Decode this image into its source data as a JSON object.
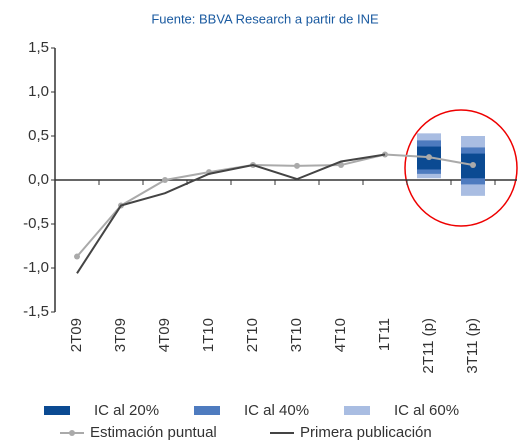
{
  "chart_data": {
    "type": "line",
    "subtitle": "Fuente: BBVA Research a partir de INE",
    "categories": [
      "2T09",
      "3T09",
      "4T09",
      "1T10",
      "2T10",
      "3T10",
      "4T10",
      "1T11",
      "2T11 (p)",
      "3T11 (p)"
    ],
    "ylim": [
      -1.5,
      1.5
    ],
    "yticks": [
      {
        "value": -1.5,
        "label": "-1,5"
      },
      {
        "value": -1.0,
        "label": "-1,0"
      },
      {
        "value": -0.5,
        "label": "-0,5"
      },
      {
        "value": 0,
        "label": "0,0"
      },
      {
        "value": 0.5,
        "label": "0,5"
      },
      {
        "value": 1.0,
        "label": "1,0"
      },
      {
        "value": 1.5,
        "label": "1,5"
      }
    ],
    "bands": [
      {
        "name": "IC al 60%",
        "color": "#a9bde2",
        "low": [
          null,
          null,
          null,
          null,
          null,
          null,
          null,
          null,
          0.02,
          -0.18
        ],
        "high": [
          null,
          null,
          null,
          null,
          null,
          null,
          null,
          null,
          0.53,
          0.5
        ]
      },
      {
        "name": "IC al 40%",
        "color": "#4e7bbf",
        "low": [
          null,
          null,
          null,
          null,
          null,
          null,
          null,
          null,
          0.07,
          -0.05
        ],
        "high": [
          null,
          null,
          null,
          null,
          null,
          null,
          null,
          null,
          0.45,
          0.37
        ]
      },
      {
        "name": "IC al 20%",
        "color": "#0b4a92",
        "low": [
          null,
          null,
          null,
          null,
          null,
          null,
          null,
          null,
          0.12,
          0.02
        ],
        "high": [
          null,
          null,
          null,
          null,
          null,
          null,
          null,
          null,
          0.38,
          0.3
        ]
      }
    ],
    "series": [
      {
        "name": "Estimación puntual",
        "color": "#aaaaaa",
        "markers": true,
        "values": [
          -0.87,
          -0.29,
          0.0,
          0.09,
          0.17,
          0.16,
          0.17,
          0.29,
          0.26,
          0.17
        ]
      },
      {
        "name": "Primera publicación",
        "color": "#444444",
        "markers": false,
        "values": [
          -1.06,
          -0.29,
          -0.15,
          0.07,
          0.17,
          0.01,
          0.21,
          0.29,
          null,
          null
        ]
      }
    ]
  }
}
